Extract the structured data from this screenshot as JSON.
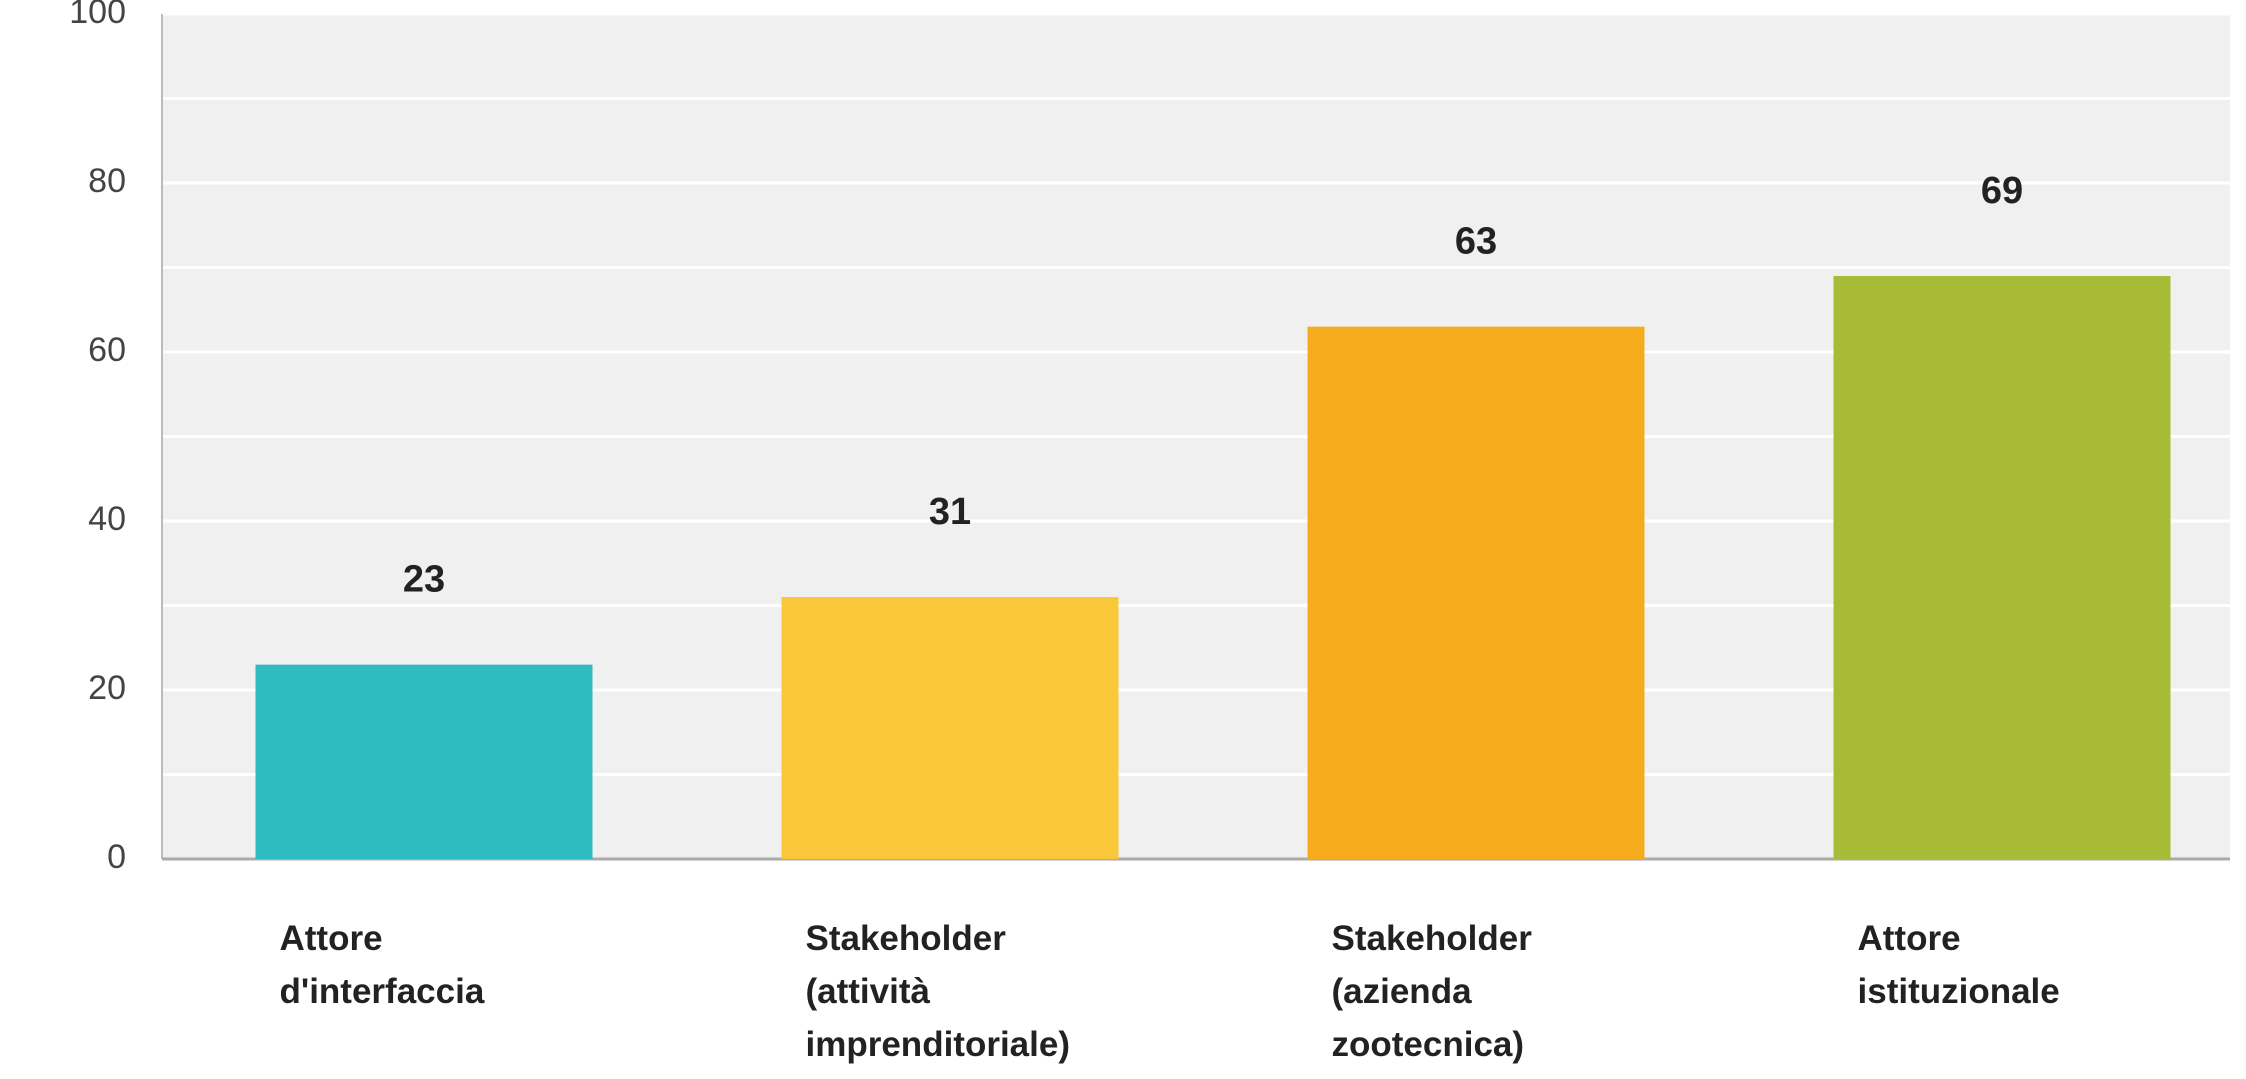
{
  "chart_data": {
    "type": "bar",
    "categories": [
      "Attore\nd'interfaccia",
      "Stakeholder\n(attività\nimprenditoriale)",
      "Stakeholder\n(azienda\nzootecnica)",
      "Attore\nistituzionale"
    ],
    "values": [
      23,
      31,
      63,
      69
    ],
    "colors": [
      "#2fbcc0",
      "#fbc73a",
      "#f6ab1d",
      "#a8bb36"
    ],
    "ylim": [
      0,
      100
    ],
    "yticks": [
      0,
      20,
      40,
      60,
      80,
      100
    ],
    "grid": true
  }
}
